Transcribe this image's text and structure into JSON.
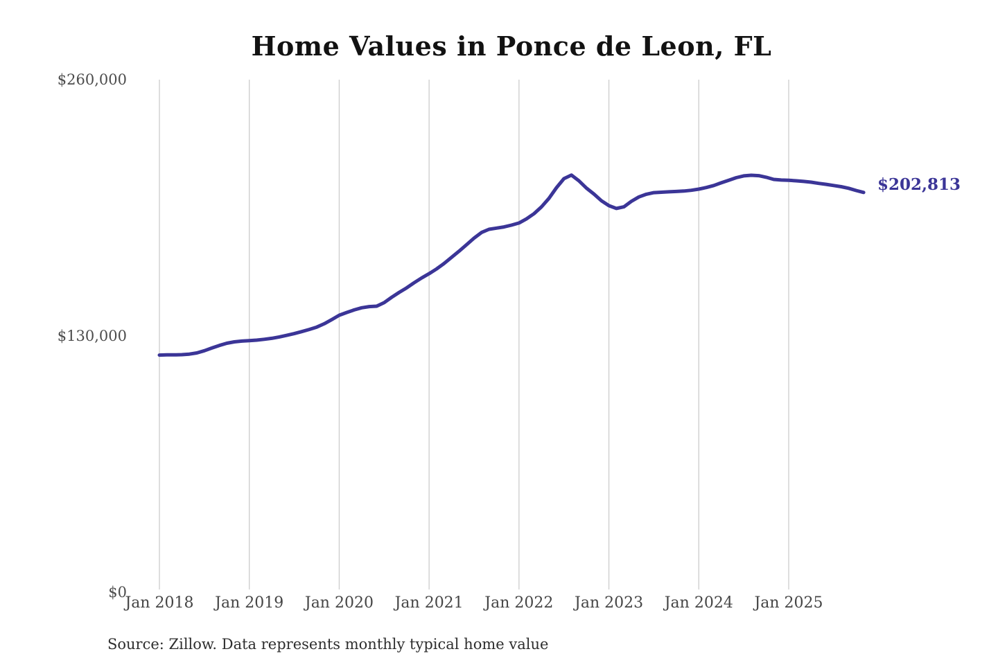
{
  "title": "Home Values in Ponce de Leon, FL",
  "end_label": "$202,813",
  "source": "Source: Zillow. Data represents monthly typical home value",
  "colors": {
    "line": "#3b3597",
    "gridline": "#cccccc",
    "axis_text": "#4c4c4c",
    "title_text": "#121212",
    "end_label_text": "#3b3597"
  },
  "y_axis": {
    "ticks": [
      {
        "label": "$260,000",
        "value": 260000
      },
      {
        "label": "$130,000",
        "value": 130000
      },
      {
        "label": "$0",
        "value": 0
      }
    ]
  },
  "chart_data": {
    "type": "line",
    "title": "Home Values in Ponce de Leon, FL",
    "xlabel": "",
    "ylabel": "",
    "ylim": [
      0,
      260000
    ],
    "grid": "vertical-only",
    "legend_position": "none",
    "x_ticks": [
      "Jan 2018",
      "Jan 2019",
      "Jan 2020",
      "Jan 2021",
      "Jan 2022",
      "Jan 2023",
      "Jan 2024",
      "Jan 2025"
    ],
    "y_ticks": [
      "$260,000",
      "$130,000",
      "$0"
    ],
    "annotation_last_value": "$202,813",
    "months": [
      "2018-01",
      "2018-02",
      "2018-03",
      "2018-04",
      "2018-05",
      "2018-06",
      "2018-07",
      "2018-08",
      "2018-09",
      "2018-10",
      "2018-11",
      "2018-12",
      "2019-01",
      "2019-02",
      "2019-03",
      "2019-04",
      "2019-05",
      "2019-06",
      "2019-07",
      "2019-08",
      "2019-09",
      "2019-10",
      "2019-11",
      "2019-12",
      "2020-01",
      "2020-02",
      "2020-03",
      "2020-04",
      "2020-05",
      "2020-06",
      "2020-07",
      "2020-08",
      "2020-09",
      "2020-10",
      "2020-11",
      "2020-12",
      "2021-01",
      "2021-02",
      "2021-03",
      "2021-04",
      "2021-05",
      "2021-06",
      "2021-07",
      "2021-08",
      "2021-09",
      "2021-10",
      "2021-11",
      "2021-12",
      "2022-01",
      "2022-02",
      "2022-03",
      "2022-04",
      "2022-05",
      "2022-06",
      "2022-07",
      "2022-08",
      "2022-09",
      "2022-10",
      "2022-11",
      "2022-12",
      "2023-01",
      "2023-02",
      "2023-03",
      "2023-04",
      "2023-05",
      "2023-06",
      "2023-07",
      "2023-08",
      "2023-09",
      "2023-10",
      "2023-11",
      "2023-12",
      "2024-01",
      "2024-02",
      "2024-03",
      "2024-04",
      "2024-05",
      "2024-06",
      "2024-07",
      "2024-08",
      "2024-09",
      "2024-10",
      "2024-11",
      "2024-12",
      "2025-01",
      "2025-02",
      "2025-03",
      "2025-04",
      "2025-05",
      "2025-06",
      "2025-07",
      "2025-08",
      "2025-09",
      "2025-10",
      "2025-11"
    ],
    "values": [
      120300,
      120400,
      120400,
      120500,
      120800,
      121400,
      122500,
      123900,
      125200,
      126300,
      127000,
      127400,
      127600,
      127900,
      128300,
      128800,
      129500,
      130300,
      131200,
      132200,
      133300,
      134500,
      136200,
      138300,
      140500,
      141900,
      143200,
      144300,
      144900,
      145100,
      146900,
      149600,
      152100,
      154400,
      157000,
      159400,
      161600,
      164000,
      166800,
      169900,
      173000,
      176300,
      179600,
      182500,
      184100,
      184700,
      185300,
      186200,
      187300,
      189400,
      192000,
      195500,
      199800,
      205200,
      209800,
      211600,
      208700,
      205000,
      202000,
      198600,
      196100,
      194700,
      195500,
      198300,
      200500,
      201900,
      202700,
      202900,
      203100,
      203300,
      203500,
      203900,
      204500,
      205300,
      206300,
      207700,
      209000,
      210300,
      211200,
      211500,
      211300,
      210500,
      209400,
      209100,
      209000,
      208700,
      208400,
      208000,
      207400,
      206900,
      206300,
      205700,
      204900,
      203800,
      202813
    ]
  }
}
